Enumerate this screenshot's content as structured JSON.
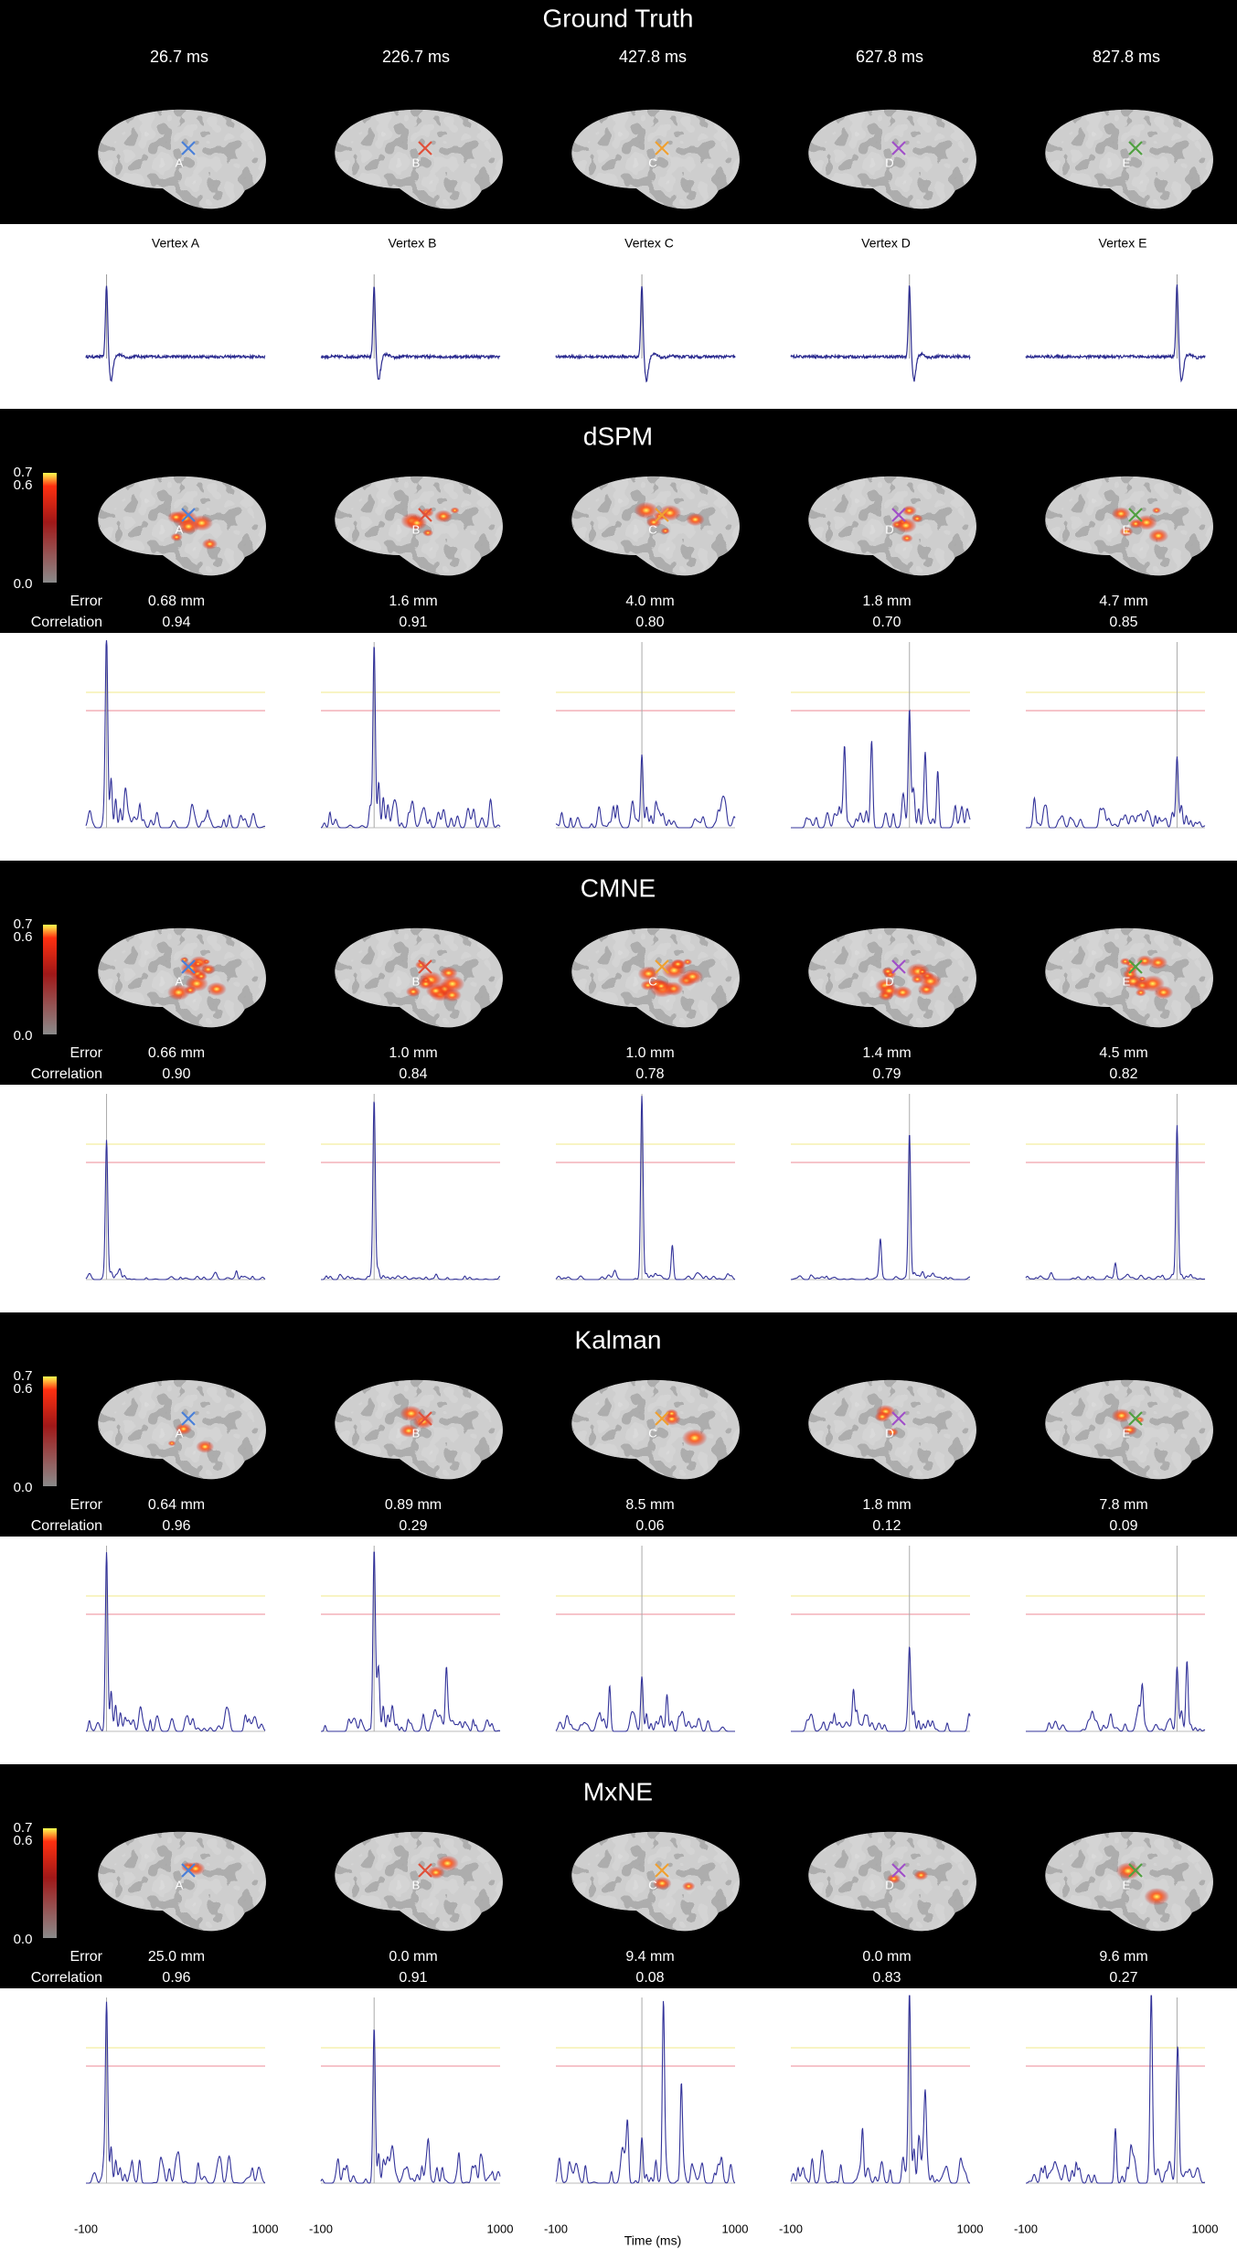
{
  "ground_truth": {
    "title": "Ground Truth",
    "times": [
      "26.7 ms",
      "226.7 ms",
      "427.8 ms",
      "627.8 ms",
      "827.8 ms"
    ],
    "vertices": [
      "Vertex A",
      "Vertex B",
      "Vertex C",
      "Vertex D",
      "Vertex E"
    ],
    "markers": [
      "A",
      "B",
      "C",
      "D",
      "E"
    ]
  },
  "colorbar": {
    "labels": [
      "0.7",
      "0.6",
      "0.0"
    ]
  },
  "labels": {
    "error": "Error",
    "correlation": "Correlation"
  },
  "methods": [
    {
      "title": "dSPM",
      "errors": [
        "0.68 mm",
        "1.6 mm",
        "4.0 mm",
        "1.8 mm",
        "4.7 mm"
      ],
      "correlations": [
        "0.94",
        "0.91",
        "0.80",
        "0.70",
        "0.85"
      ]
    },
    {
      "title": "CMNE",
      "errors": [
        "0.66 mm",
        "1.0 mm",
        "1.0 mm",
        "1.4 mm",
        "4.5 mm"
      ],
      "correlations": [
        "0.90",
        "0.84",
        "0.78",
        "0.79",
        "0.82"
      ]
    },
    {
      "title": "Kalman",
      "errors": [
        "0.64 mm",
        "0.89 mm",
        "8.5 mm",
        "1.8 mm",
        "7.8 mm"
      ],
      "correlations": [
        "0.96",
        "0.29",
        "0.06",
        "0.12",
        "0.09"
      ]
    },
    {
      "title": "MxNE",
      "errors": [
        "25.0 mm",
        "0.0 mm",
        "9.4 mm",
        "0.0 mm",
        "9.6 mm"
      ],
      "correlations": [
        "0.96",
        "0.91",
        "0.08",
        "0.83",
        "0.27"
      ]
    }
  ],
  "axis": {
    "ticks": [
      "-100",
      "1000"
    ],
    "label": "Time (ms)"
  }
}
